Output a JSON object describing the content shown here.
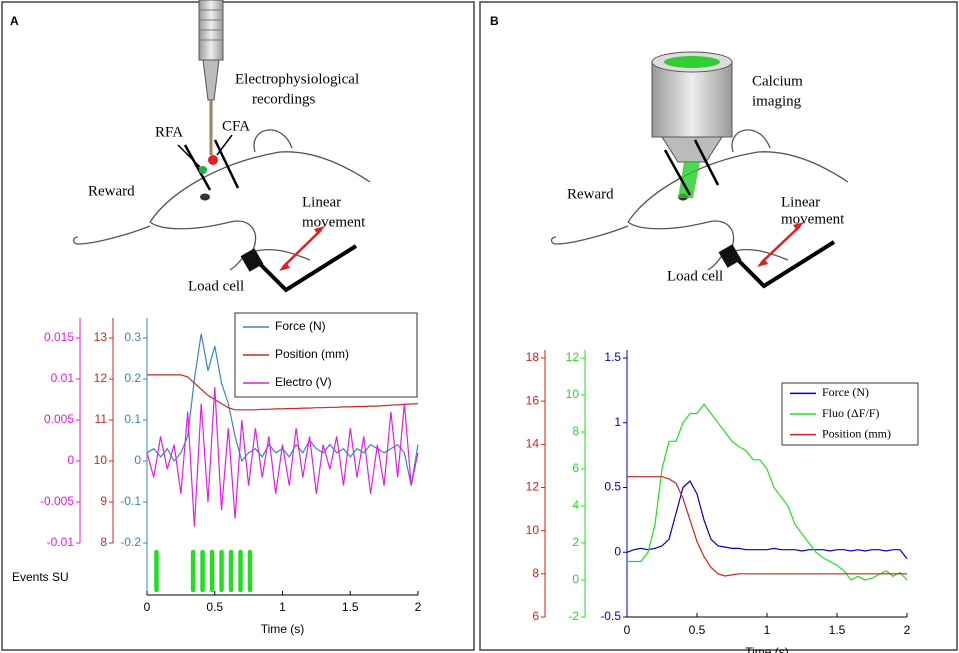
{
  "chart_data": [
    {
      "type": "line",
      "panel_label": "A",
      "xlabel": "Time (s)",
      "annotations": [
        "Electrophysiological",
        "recordings",
        "RFA",
        "CFA",
        "Reward",
        "Linear",
        "movement",
        "Load cell"
      ],
      "x": [
        0,
        0.05,
        0.1,
        0.15,
        0.2,
        0.25,
        0.3,
        0.35,
        0.4,
        0.45,
        0.5,
        0.55,
        0.6,
        0.65,
        0.7,
        0.75,
        0.8,
        0.85,
        0.9,
        0.95,
        1,
        1.05,
        1.1,
        1.15,
        1.2,
        1.25,
        1.3,
        1.35,
        1.4,
        1.45,
        1.5,
        1.55,
        1.6,
        1.65,
        1.7,
        1.75,
        1.8,
        1.85,
        1.9,
        1.95,
        2
      ],
      "xlim": [
        0,
        2
      ],
      "xticks": [
        0,
        0.5,
        1,
        1.5,
        2
      ],
      "ylim": [
        -0.2,
        0.3
      ],
      "yticks": [
        -0.2,
        -0.1,
        0,
        0.1,
        0.2,
        0.3
      ],
      "y2lim": [
        8,
        13
      ],
      "y2ticks": [
        8,
        9,
        10,
        11,
        12,
        13
      ],
      "y3lim": [
        -0.01,
        0.015
      ],
      "y3ticks": [
        -0.01,
        -0.005,
        0,
        0.005,
        0.01,
        0.015
      ],
      "legend": "upper right",
      "series": [
        {
          "name": "Force (N)",
          "color": "#3a86c0",
          "axis": "y",
          "values": [
            0.02,
            0.03,
            0.01,
            0.03,
            0.0,
            0.02,
            0.06,
            0.2,
            0.31,
            0.22,
            0.28,
            0.19,
            0.14,
            0.06,
            0.0,
            0.02,
            0.03,
            0.01,
            0.04,
            0.02,
            0.03,
            0.01,
            0.04,
            0.02,
            0.05,
            0.03,
            0.02,
            0.04,
            0.02,
            0.03,
            0.01,
            0.03,
            0.02,
            0.04,
            0.03,
            0.02,
            0.03,
            0.04,
            0.02,
            -0.06,
            0.04
          ]
        },
        {
          "name": "Position (mm)",
          "color": "#c8282b",
          "axis": "y2",
          "values": [
            12.1,
            12.1,
            12.1,
            12.1,
            12.1,
            12.1,
            12.05,
            11.9,
            11.75,
            11.6,
            11.5,
            11.4,
            11.3,
            11.25,
            11.25,
            11.25,
            11.25,
            11.26,
            11.26,
            11.27,
            11.27,
            11.28,
            11.28,
            11.29,
            11.29,
            11.3,
            11.3,
            11.31,
            11.31,
            11.32,
            11.32,
            11.33,
            11.33,
            11.34,
            11.34,
            11.35,
            11.36,
            11.37,
            11.38,
            11.39,
            11.4
          ]
        },
        {
          "name": "Electro (V)",
          "color": "#e020e0",
          "axis": "y3",
          "values": [
            0.001,
            -0.002,
            0.003,
            -0.001,
            0.002,
            -0.004,
            0.006,
            -0.008,
            0.007,
            -0.005,
            0.009,
            -0.006,
            0.004,
            -0.007,
            0.005,
            -0.003,
            0.004,
            -0.002,
            0.003,
            -0.004,
            0.002,
            -0.003,
            0.004,
            -0.002,
            0.003,
            -0.004,
            0.002,
            -0.001,
            0.003,
            -0.003,
            0.004,
            -0.002,
            0.003,
            -0.004,
            0.002,
            -0.003,
            0.006,
            -0.002,
            0.007,
            -0.003,
            0.001
          ]
        }
      ],
      "events": {
        "name": "Events SU",
        "color": "#22dd22",
        "x": [
          0.07,
          0.34,
          0.41,
          0.48,
          0.55,
          0.62,
          0.69,
          0.76
        ]
      }
    },
    {
      "type": "line",
      "panel_label": "B",
      "xlabel": "Time (s)",
      "annotations": [
        "Calcium",
        "imaging",
        "Reward",
        "Linear",
        "movement",
        "Load cell"
      ],
      "x": [
        0,
        0.05,
        0.1,
        0.15,
        0.2,
        0.25,
        0.3,
        0.35,
        0.4,
        0.45,
        0.5,
        0.55,
        0.6,
        0.65,
        0.7,
        0.75,
        0.8,
        0.85,
        0.9,
        0.95,
        1,
        1.05,
        1.1,
        1.15,
        1.2,
        1.25,
        1.3,
        1.35,
        1.4,
        1.45,
        1.5,
        1.55,
        1.6,
        1.65,
        1.7,
        1.75,
        1.8,
        1.85,
        1.9,
        1.95,
        2
      ],
      "xlim": [
        0,
        2
      ],
      "xticks": [
        0,
        0.5,
        1,
        1.5,
        2
      ],
      "ylim": [
        -0.5,
        1.5
      ],
      "yticks": [
        -0.5,
        0,
        0.5,
        1,
        1.5
      ],
      "y2lim": [
        -2,
        12
      ],
      "y2ticks": [
        -2,
        0,
        2,
        4,
        6,
        8,
        10,
        12
      ],
      "y3lim": [
        6,
        18
      ],
      "y3ticks": [
        6,
        8,
        10,
        12,
        14,
        16,
        18
      ],
      "legend": "upper right",
      "series": [
        {
          "name": "Force (N)",
          "color": "#0000c0",
          "axis": "y",
          "values": [
            0.0,
            0.02,
            0.03,
            0.02,
            0.03,
            0.05,
            0.1,
            0.3,
            0.5,
            0.55,
            0.45,
            0.25,
            0.1,
            0.05,
            0.04,
            0.03,
            0.03,
            0.02,
            0.02,
            0.02,
            0.02,
            0.03,
            0.02,
            0.02,
            0.02,
            0.01,
            0.02,
            0.02,
            0.02,
            0.01,
            0.02,
            0.02,
            0.01,
            0.02,
            0.01,
            0.02,
            0.02,
            0.01,
            0.02,
            0.02,
            -0.05
          ]
        },
        {
          "name": "Fluo (ΔF/F)",
          "color": "#22dd22",
          "axis": "y2",
          "values": [
            1,
            1,
            1,
            1.5,
            3,
            6,
            7.5,
            7.5,
            8.5,
            9,
            9,
            9.5,
            9,
            8.5,
            8,
            7.5,
            7.2,
            7,
            6.5,
            6.5,
            6,
            5,
            4.5,
            4,
            3,
            2.5,
            2,
            1.5,
            1.2,
            1,
            0.8,
            0.5,
            0,
            0.2,
            0,
            0.1,
            0.3,
            0.5,
            0.2,
            0.4,
            0
          ]
        },
        {
          "name": "Position (mm)",
          "color": "#d02020",
          "axis": "y3",
          "values": [
            12.5,
            12.5,
            12.5,
            12.5,
            12.5,
            12.5,
            12.4,
            12.2,
            11.5,
            10.5,
            9.5,
            8.8,
            8.3,
            8.0,
            7.9,
            7.95,
            8,
            8,
            8,
            8,
            8,
            8,
            8,
            8,
            8,
            8,
            8,
            8,
            8,
            8,
            8,
            8,
            8,
            8,
            8,
            8,
            8,
            8,
            8,
            8,
            8
          ]
        }
      ]
    }
  ]
}
